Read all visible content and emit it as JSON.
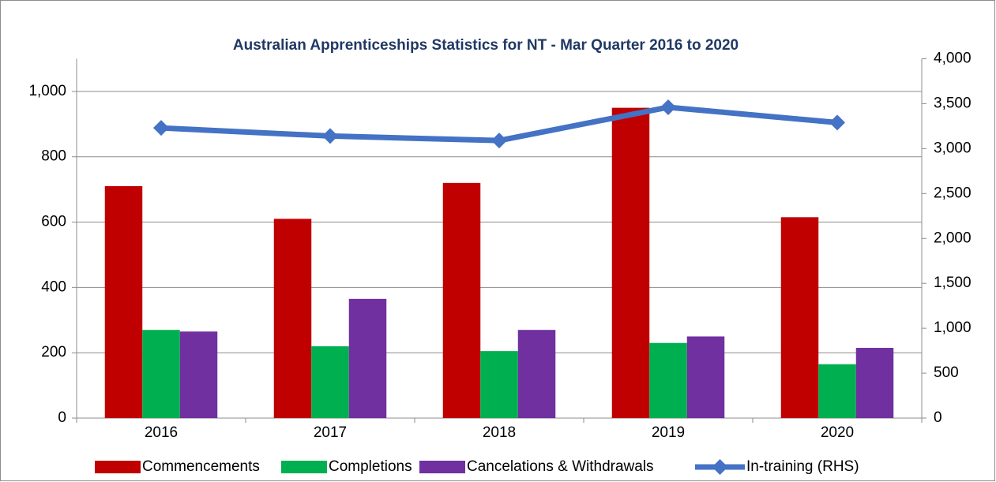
{
  "chart_data": {
    "type": "bar",
    "title": "Australian Apprenticeships Statistics for NT - Mar Quarter  2016 to 2020",
    "categories": [
      "2016",
      "2017",
      "2018",
      "2019",
      "2020"
    ],
    "series": [
      {
        "name": "Commencements",
        "color": "#c00000",
        "values": [
          710,
          610,
          720,
          950,
          615
        ]
      },
      {
        "name": "Completions",
        "color": "#00b050",
        "values": [
          270,
          220,
          205,
          230,
          165
        ]
      },
      {
        "name": "Cancelations & Withdrawals",
        "color": "#7030a0",
        "values": [
          265,
          365,
          270,
          250,
          215
        ]
      },
      {
        "name": "In-training (RHS)",
        "color": "#4472c4",
        "type": "line",
        "axis": "y2",
        "values": [
          3230,
          3140,
          3090,
          3460,
          3290
        ]
      }
    ],
    "ylim": [
      0,
      1100
    ],
    "yticks": [
      0,
      200,
      400,
      600,
      800,
      {
        "value": 1000,
        "label": "1,000"
      }
    ],
    "y2lim": [
      0,
      4000
    ],
    "y2ticks": [
      0,
      500,
      {
        "value": 1000,
        "label": "1,000"
      },
      {
        "value": 1500,
        "label": "1,500"
      },
      {
        "value": 2000,
        "label": "2,000"
      },
      {
        "value": 2500,
        "label": "2,500"
      },
      {
        "value": 3000,
        "label": "3,000"
      },
      {
        "value": 3500,
        "label": "3,500"
      },
      {
        "value": 4000,
        "label": "4,000"
      }
    ],
    "grid": true,
    "legend": "bottom"
  }
}
